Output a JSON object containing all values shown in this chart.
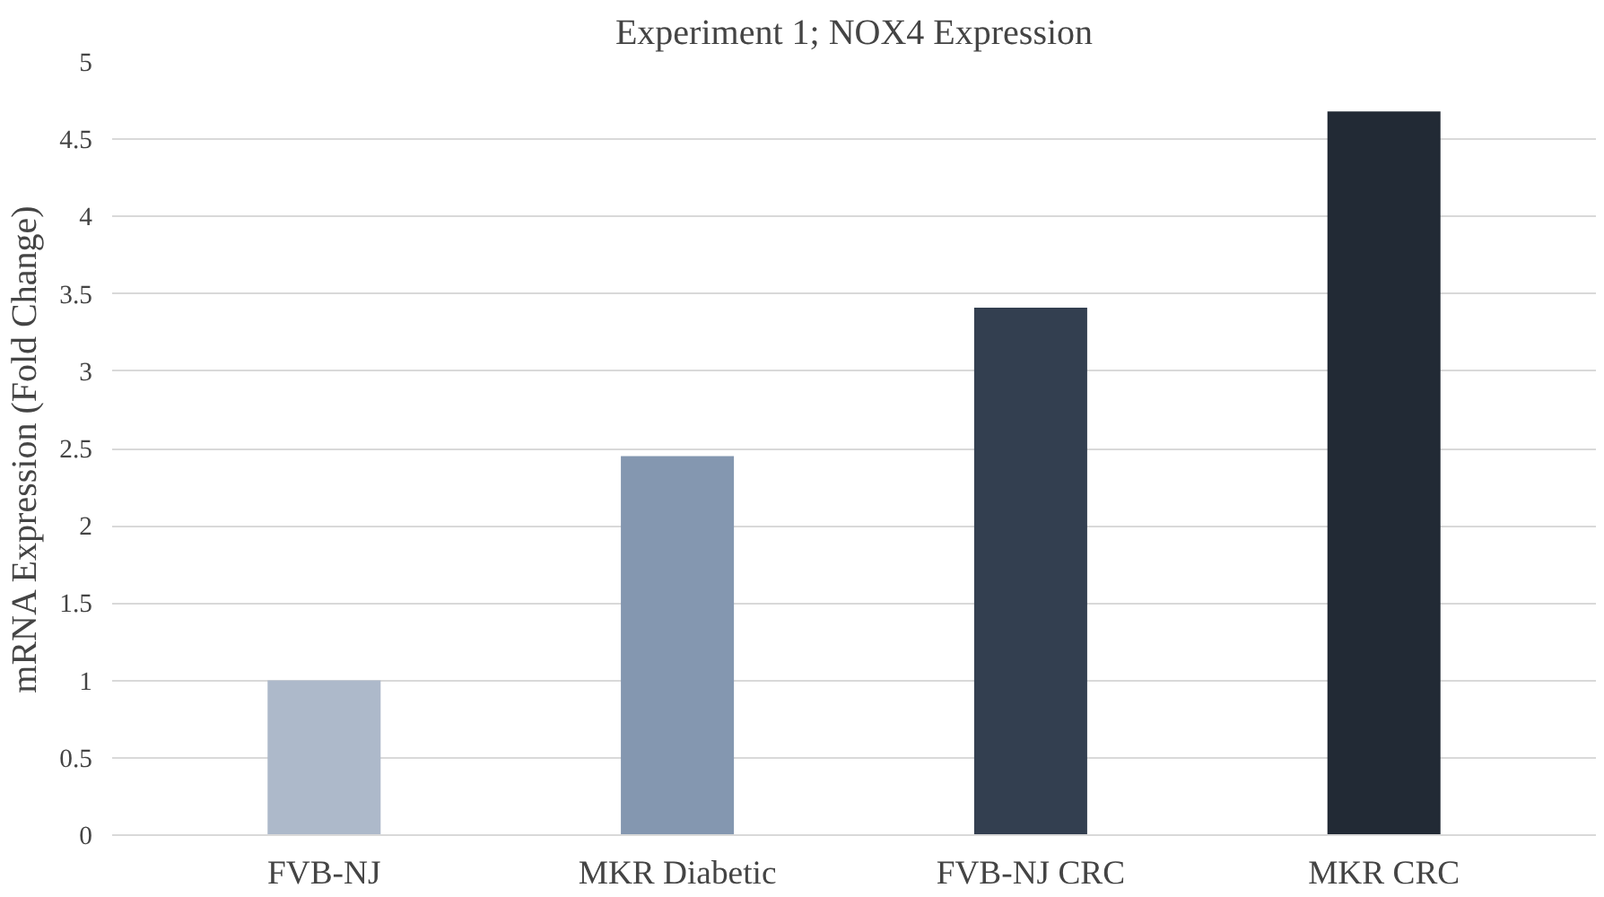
{
  "chart_data": {
    "type": "bar",
    "title": "Experiment 1; NOX4 Expression",
    "ylabel": "mRNA Expression (Fold Change)",
    "categories": [
      "FVB-NJ",
      "MKR Diabetic",
      "FVB-NJ CRC",
      "MKR CRC"
    ],
    "values": [
      1.0,
      2.45,
      3.41,
      4.68
    ],
    "colors": [
      "#adb9ca",
      "#8497b0",
      "#333f50",
      "#222a35"
    ],
    "ylim": [
      0,
      5
    ],
    "yticks": [
      0,
      0.5,
      1,
      1.5,
      2,
      2.5,
      3,
      3.5,
      4,
      4.5,
      5
    ],
    "grid": "y"
  }
}
